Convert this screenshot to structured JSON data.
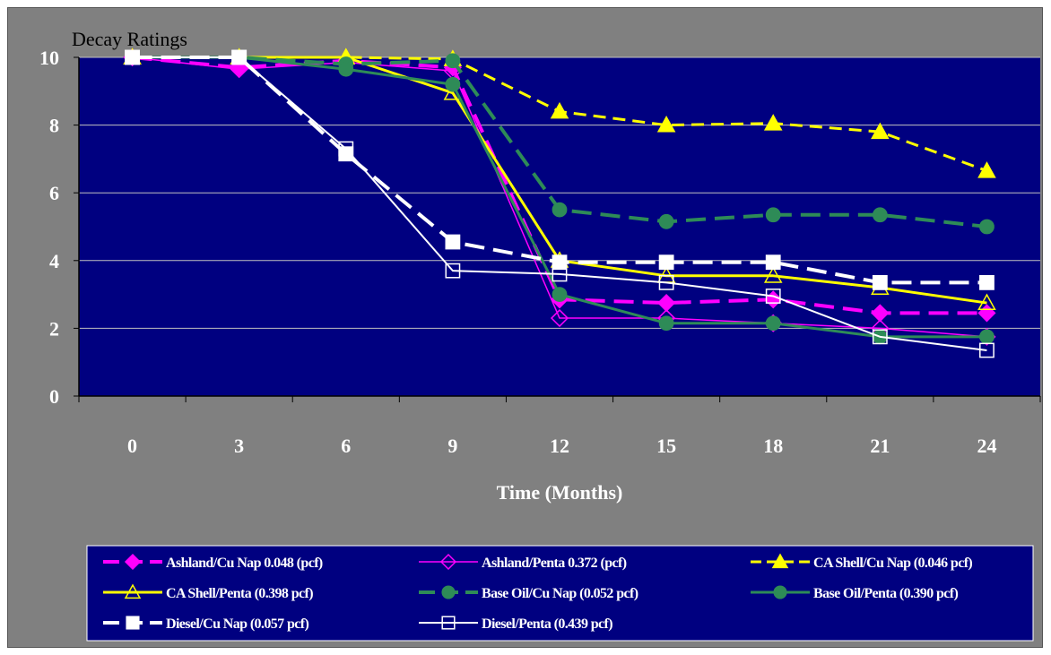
{
  "chart_data": {
    "type": "line",
    "title": "",
    "ylabel": "Decay Ratings",
    "xlabel": "Time (Months)",
    "categories": [
      "0",
      "3",
      "6",
      "9",
      "12",
      "15",
      "18",
      "21",
      "24"
    ],
    "ylim": [
      0,
      10
    ],
    "yticks": [
      "0",
      "2",
      "4",
      "6",
      "8",
      "10"
    ],
    "grid": true,
    "legend_position": "bottom",
    "series": [
      {
        "name": "Ashland/Cu Nap 0.048 (pcf)",
        "color": "#ff00ff",
        "dash": "dashed",
        "width": 4,
        "marker": "diamond-filled",
        "values": [
          10,
          9.7,
          9.9,
          9.7,
          2.85,
          2.75,
          2.85,
          2.45,
          2.45
        ]
      },
      {
        "name": "Ashland/Penta 0.372 (pcf)",
        "color": "#ff00ff",
        "dash": "solid",
        "width": 1.5,
        "marker": "diamond-open",
        "values": [
          10,
          9.65,
          9.85,
          9.6,
          2.3,
          2.3,
          2.15,
          2.0,
          1.75
        ]
      },
      {
        "name": "CA Shell/Cu Nap (0.046 pcf)",
        "color": "#ffff00",
        "dash": "dashed",
        "width": 3,
        "marker": "triangle-filled",
        "values": [
          10,
          10,
          10,
          9.95,
          8.4,
          8.0,
          8.05,
          7.8,
          6.65
        ]
      },
      {
        "name": "CA Shell/Penta (0.398 pcf)",
        "color": "#ffff00",
        "dash": "solid",
        "width": 3,
        "marker": "triangle-open",
        "values": [
          10,
          10,
          10,
          8.95,
          4.0,
          3.55,
          3.55,
          3.2,
          2.75
        ]
      },
      {
        "name": "Base Oil/Cu Nap (0.052 pcf)",
        "color": "#2e8b57",
        "dash": "dashed",
        "width": 4,
        "marker": "circle-filled",
        "values": [
          10,
          10,
          9.8,
          9.9,
          5.5,
          5.15,
          5.35,
          5.35,
          5.0
        ]
      },
      {
        "name": "Base Oil/Penta (0.390 pcf)",
        "color": "#2e8b57",
        "dash": "solid",
        "width": 3,
        "marker": "circle-filled",
        "values": [
          10,
          10,
          9.65,
          9.2,
          3.0,
          2.15,
          2.15,
          1.75,
          1.75
        ]
      },
      {
        "name": "Diesel/Cu Nap (0.057 pcf)",
        "color": "#ffffff",
        "dash": "dashed",
        "width": 4,
        "marker": "square-filled",
        "values": [
          10,
          10,
          7.15,
          4.55,
          3.95,
          3.95,
          3.95,
          3.35,
          3.35
        ]
      },
      {
        "name": "Diesel/Penta (0.439 pcf)",
        "color": "#ffffff",
        "dash": "solid",
        "width": 2,
        "marker": "square-open",
        "values": [
          10,
          10,
          7.3,
          3.7,
          3.6,
          3.35,
          2.95,
          1.75,
          1.35
        ]
      }
    ],
    "colors": {
      "frame": "#808080",
      "plot_area": "#000080",
      "gridline": "#c0c0c0",
      "legend_box": "#000080",
      "text": "#ffffff"
    }
  }
}
